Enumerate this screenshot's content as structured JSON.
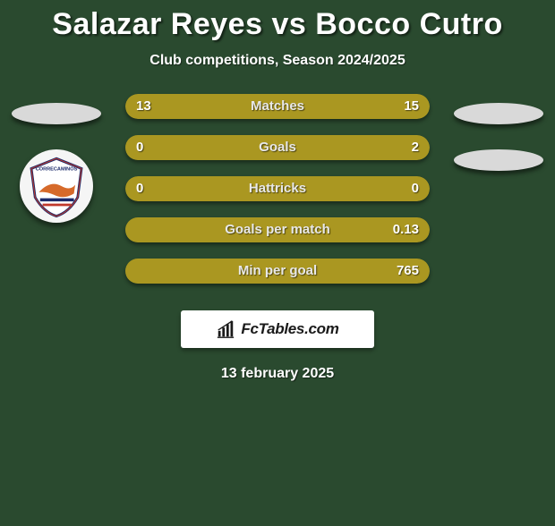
{
  "title": "Salazar Reyes vs Bocco Cutro",
  "subtitle": "Club competitions, Season 2024/2025",
  "date": "13 february 2025",
  "footer_logo_text": "FcTables.com",
  "colors": {
    "background": "#2a4a2f",
    "left_fill": "#aa9721",
    "right_fill": "#aa9721",
    "text_shadow": "rgba(0,0,0,0.55)"
  },
  "rows": [
    {
      "label": "Matches",
      "left": "13",
      "right": "15",
      "left_pct": 46,
      "right_pct": 54
    },
    {
      "label": "Goals",
      "left": "0",
      "right": "2",
      "left_pct": 2,
      "right_pct": 98
    },
    {
      "label": "Hattricks",
      "left": "0",
      "right": "0",
      "left_pct": 50,
      "right_pct": 50
    },
    {
      "label": "Goals per match",
      "left": "",
      "right": "0.13",
      "left_pct": 2,
      "right_pct": 98
    },
    {
      "label": "Min per goal",
      "left": "",
      "right": "765",
      "left_pct": 2,
      "right_pct": 98
    }
  ]
}
